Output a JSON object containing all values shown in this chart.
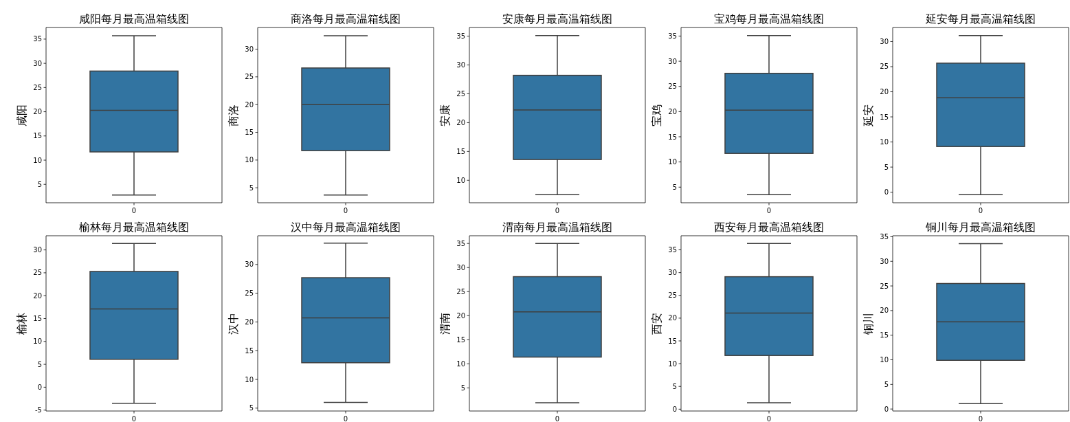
{
  "chart_data": [
    {
      "type": "box",
      "title": "咸阳每月最高温箱线图",
      "ylabel": "咸阳",
      "categories": [
        "0"
      ],
      "color": "#3274a1",
      "ylim": [
        1.2,
        37.4
      ],
      "yticks": [
        5,
        10,
        15,
        20,
        25,
        30,
        35
      ],
      "boxes": [
        {
          "low": 2.8,
          "q1": 11.7,
          "median": 20.3,
          "q3": 28.4,
          "high": 35.7
        }
      ]
    },
    {
      "type": "box",
      "title": "商洛每月最高温箱线图",
      "ylabel": "商洛",
      "categories": [
        "0"
      ],
      "color": "#3274a1",
      "ylim": [
        2.3,
        33.9
      ],
      "yticks": [
        5,
        10,
        15,
        20,
        25,
        30
      ],
      "boxes": [
        {
          "low": 3.7,
          "q1": 11.7,
          "median": 20.0,
          "q3": 26.6,
          "high": 32.4
        }
      ]
    },
    {
      "type": "box",
      "title": "安康每月最高温箱线图",
      "ylabel": "安康",
      "categories": [
        "0"
      ],
      "color": "#3274a1",
      "ylim": [
        6.1,
        36.5
      ],
      "yticks": [
        10,
        15,
        20,
        25,
        30,
        35
      ],
      "boxes": [
        {
          "low": 7.5,
          "q1": 13.6,
          "median": 22.2,
          "q3": 28.2,
          "high": 35.1
        }
      ]
    },
    {
      "type": "box",
      "title": "宝鸡每月最高温箱线图",
      "ylabel": "宝鸡",
      "categories": [
        "0"
      ],
      "color": "#3274a1",
      "ylim": [
        1.9,
        36.7
      ],
      "yticks": [
        5,
        10,
        15,
        20,
        25,
        30,
        35
      ],
      "boxes": [
        {
          "low": 3.5,
          "q1": 11.7,
          "median": 20.3,
          "q3": 27.6,
          "high": 35.1
        }
      ]
    },
    {
      "type": "box",
      "title": "延安每月最高温箱线图",
      "ylabel": "延安",
      "categories": [
        "0"
      ],
      "color": "#3274a1",
      "ylim": [
        -2.1,
        32.8
      ],
      "yticks": [
        0,
        5,
        10,
        15,
        20,
        25,
        30
      ],
      "boxes": [
        {
          "low": -0.5,
          "q1": 9.1,
          "median": 18.8,
          "q3": 25.7,
          "high": 31.2
        }
      ]
    },
    {
      "type": "box",
      "title": "榆林每月最高温箱线图",
      "ylabel": "榆林",
      "categories": [
        "0"
      ],
      "color": "#3274a1",
      "ylim": [
        -5.2,
        33.1
      ],
      "yticks": [
        -5,
        0,
        5,
        10,
        15,
        20,
        25,
        30
      ],
      "boxes": [
        {
          "low": -3.5,
          "q1": 6.1,
          "median": 17.1,
          "q3": 25.3,
          "high": 31.4
        }
      ]
    },
    {
      "type": "box",
      "title": "汉中每月最高温箱线图",
      "ylabel": "汉中",
      "categories": [
        "0"
      ],
      "color": "#3274a1",
      "ylim": [
        4.5,
        35.0
      ],
      "yticks": [
        5,
        10,
        15,
        20,
        25,
        30
      ],
      "boxes": [
        {
          "low": 6.0,
          "q1": 12.9,
          "median": 20.7,
          "q3": 27.7,
          "high": 33.7
        }
      ]
    },
    {
      "type": "box",
      "title": "渭南每月最高温箱线图",
      "ylabel": "渭南",
      "categories": [
        "0"
      ],
      "color": "#3274a1",
      "ylim": [
        0.2,
        36.6
      ],
      "yticks": [
        5,
        10,
        15,
        20,
        25,
        30,
        35
      ],
      "boxes": [
        {
          "low": 1.9,
          "q1": 11.4,
          "median": 20.8,
          "q3": 28.1,
          "high": 35.0
        }
      ]
    },
    {
      "type": "box",
      "title": "西安每月最高温箱线图",
      "ylabel": "西安",
      "categories": [
        "0"
      ],
      "color": "#3274a1",
      "ylim": [
        -0.4,
        38.1
      ],
      "yticks": [
        0,
        5,
        10,
        15,
        20,
        25,
        30,
        35
      ],
      "boxes": [
        {
          "low": 1.4,
          "q1": 11.8,
          "median": 21.1,
          "q3": 29.1,
          "high": 36.4
        }
      ]
    },
    {
      "type": "box",
      "title": "铜川每月最高温箱线图",
      "ylabel": "铜川",
      "categories": [
        "0"
      ],
      "color": "#3274a1",
      "ylim": [
        -0.4,
        35.2
      ],
      "yticks": [
        0,
        5,
        10,
        15,
        20,
        25,
        30,
        35
      ],
      "boxes": [
        {
          "low": 1.1,
          "q1": 9.9,
          "median": 17.7,
          "q3": 25.5,
          "high": 33.6
        }
      ]
    }
  ]
}
